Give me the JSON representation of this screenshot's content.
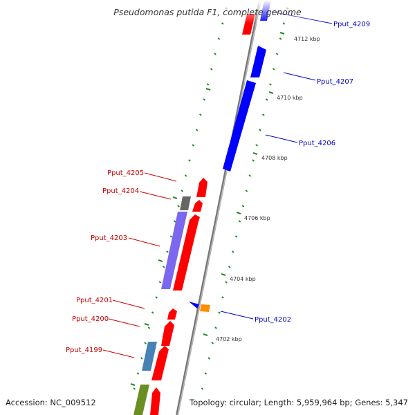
{
  "title": "Pseudomonas putida F1, complete genome",
  "footer": {
    "accession": "Accession: NC_009512",
    "topology": "Topology: circular; Length: 5,959,964 bp; Genes: 5,347"
  },
  "colors": {
    "plus_label": "#0000cc",
    "minus_label": "#cc0000",
    "tick": "#228b22",
    "backbone": "#888888"
  },
  "position_labels": [
    "4712 kbp",
    "4710 kbp",
    "4708 kbp",
    "4706 kbp",
    "4704 kbp",
    "4702 kbp"
  ],
  "genes": [
    {
      "id": "Pput_4209",
      "strand": "plus"
    },
    {
      "id": "Pput_4207",
      "strand": "plus"
    },
    {
      "id": "Pput_4206",
      "strand": "plus"
    },
    {
      "id": "Pput_4205",
      "strand": "minus"
    },
    {
      "id": "Pput_4204",
      "strand": "minus"
    },
    {
      "id": "Pput_4203",
      "strand": "minus"
    },
    {
      "id": "Pput_4202",
      "strand": "plus"
    },
    {
      "id": "Pput_4201",
      "strand": "minus"
    },
    {
      "id": "Pput_4200",
      "strand": "minus"
    },
    {
      "id": "Pput_4199",
      "strand": "minus"
    }
  ]
}
